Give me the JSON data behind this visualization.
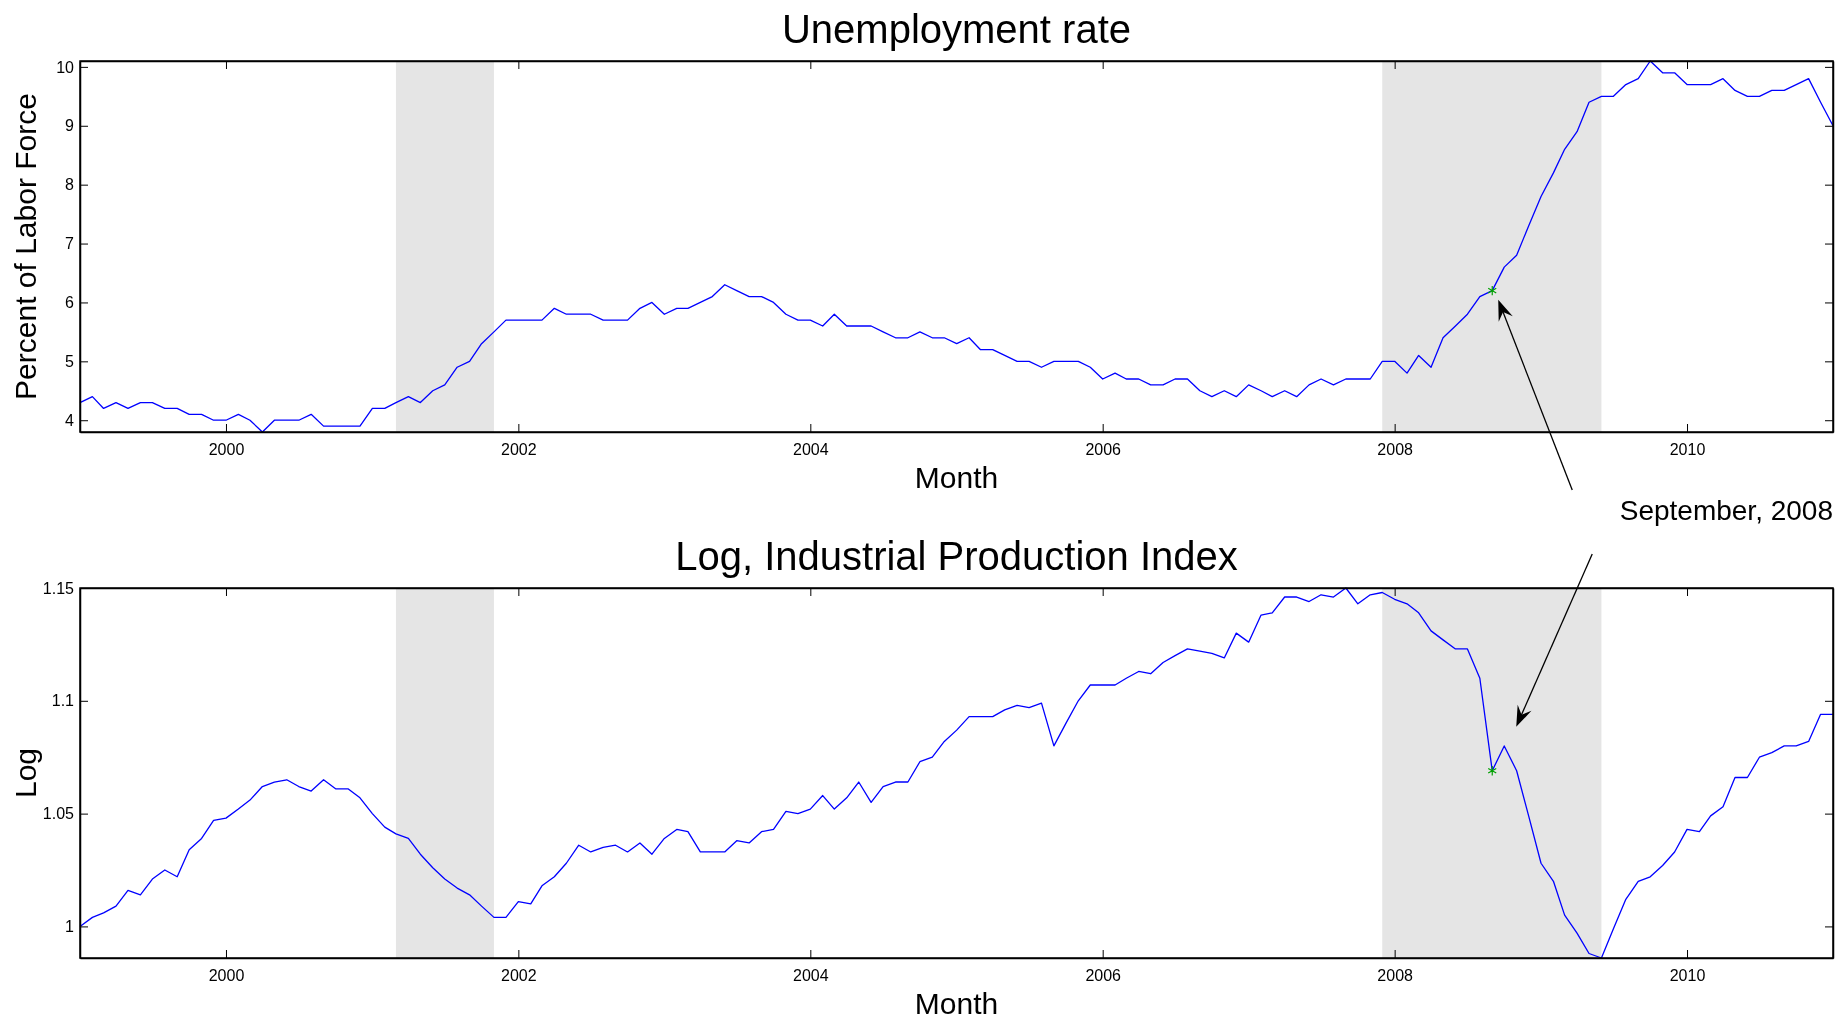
{
  "chart_data": [
    {
      "type": "line",
      "title": "Unemployment rate",
      "xlabel": "Month",
      "ylabel": "Percent of Labor Force",
      "x": [
        "1999-01",
        "1999-02",
        "1999-03",
        "1999-04",
        "1999-05",
        "1999-06",
        "1999-07",
        "1999-08",
        "1999-09",
        "1999-10",
        "1999-11",
        "1999-12",
        "2000-01",
        "2000-02",
        "2000-03",
        "2000-04",
        "2000-05",
        "2000-06",
        "2000-07",
        "2000-08",
        "2000-09",
        "2000-10",
        "2000-11",
        "2000-12",
        "2001-01",
        "2001-02",
        "2001-03",
        "2001-04",
        "2001-05",
        "2001-06",
        "2001-07",
        "2001-08",
        "2001-09",
        "2001-10",
        "2001-11",
        "2001-12",
        "2002-01",
        "2002-02",
        "2002-03",
        "2002-04",
        "2002-05",
        "2002-06",
        "2002-07",
        "2002-08",
        "2002-09",
        "2002-10",
        "2002-11",
        "2002-12",
        "2003-01",
        "2003-02",
        "2003-03",
        "2003-04",
        "2003-05",
        "2003-06",
        "2003-07",
        "2003-08",
        "2003-09",
        "2003-10",
        "2003-11",
        "2003-12",
        "2004-01",
        "2004-02",
        "2004-03",
        "2004-04",
        "2004-05",
        "2004-06",
        "2004-07",
        "2004-08",
        "2004-09",
        "2004-10",
        "2004-11",
        "2004-12",
        "2005-01",
        "2005-02",
        "2005-03",
        "2005-04",
        "2005-05",
        "2005-06",
        "2005-07",
        "2005-08",
        "2005-09",
        "2005-10",
        "2005-11",
        "2005-12",
        "2006-01",
        "2006-02",
        "2006-03",
        "2006-04",
        "2006-05",
        "2006-06",
        "2006-07",
        "2006-08",
        "2006-09",
        "2006-10",
        "2006-11",
        "2006-12",
        "2007-01",
        "2007-02",
        "2007-03",
        "2007-04",
        "2007-05",
        "2007-06",
        "2007-07",
        "2007-08",
        "2007-09",
        "2007-10",
        "2007-11",
        "2007-12",
        "2008-01",
        "2008-02",
        "2008-03",
        "2008-04",
        "2008-05",
        "2008-06",
        "2008-07",
        "2008-08",
        "2008-09",
        "2008-10",
        "2008-11",
        "2008-12",
        "2009-01",
        "2009-02",
        "2009-03",
        "2009-04",
        "2009-05",
        "2009-06",
        "2009-07",
        "2009-08",
        "2009-09",
        "2009-10",
        "2009-11",
        "2009-12",
        "2010-01",
        "2010-02",
        "2010-03",
        "2010-04",
        "2010-05",
        "2010-06",
        "2010-07",
        "2010-08",
        "2010-09",
        "2010-10",
        "2010-11",
        "2010-12",
        "2011-01"
      ],
      "series": [
        {
          "color": "#0000ff",
          "values": [
            4.3,
            4.4,
            4.2,
            4.3,
            4.2,
            4.3,
            4.3,
            4.2,
            4.2,
            4.1,
            4.1,
            4.0,
            4.0,
            4.1,
            4.0,
            3.8,
            4.0,
            4.0,
            4.0,
            4.1,
            3.9,
            3.9,
            3.9,
            3.9,
            4.2,
            4.2,
            4.3,
            4.4,
            4.3,
            4.5,
            4.6,
            4.9,
            5.0,
            5.3,
            5.5,
            5.7,
            5.7,
            5.7,
            5.7,
            5.9,
            5.8,
            5.8,
            5.8,
            5.7,
            5.7,
            5.7,
            5.9,
            6.0,
            5.8,
            5.9,
            5.9,
            6.0,
            6.1,
            6.3,
            6.2,
            6.1,
            6.1,
            6.0,
            5.8,
            5.7,
            5.7,
            5.6,
            5.8,
            5.6,
            5.6,
            5.6,
            5.5,
            5.4,
            5.4,
            5.5,
            5.4,
            5.4,
            5.3,
            5.4,
            5.2,
            5.2,
            5.1,
            5.0,
            5.0,
            4.9,
            5.0,
            5.0,
            5.0,
            4.9,
            4.7,
            4.8,
            4.7,
            4.7,
            4.6,
            4.6,
            4.7,
            4.7,
            4.5,
            4.4,
            4.5,
            4.4,
            4.6,
            4.5,
            4.4,
            4.5,
            4.4,
            4.6,
            4.7,
            4.6,
            4.7,
            4.7,
            4.7,
            5.0,
            5.0,
            4.8,
            5.1,
            4.9,
            5.4,
            5.6,
            5.8,
            6.1,
            6.2,
            6.6,
            6.8,
            7.3,
            7.8,
            8.2,
            8.6,
            8.9,
            9.4,
            9.5,
            9.5,
            9.7,
            9.8,
            10.1,
            9.9,
            9.9,
            9.7,
            9.7,
            9.7,
            9.8,
            9.6,
            9.5,
            9.5,
            9.6,
            9.6,
            9.7,
            9.8,
            9.4,
            9.0
          ]
        },
        {
          "type": "scatter",
          "color": "#00a000",
          "marker": "cross",
          "x": [
            "2008-09"
          ],
          "values": [
            6.2
          ]
        }
      ],
      "xlim": [
        "1999-01",
        "2011-01"
      ],
      "xticks": [
        "2000",
        "2002",
        "2004",
        "2006",
        "2008",
        "2010"
      ],
      "ylim": [
        3.8,
        10.1
      ],
      "yticks": [
        4,
        5,
        6,
        7,
        8,
        9,
        10
      ],
      "bands": [
        {
          "axis": "x",
          "from": "2001-03",
          "to": "2001-11",
          "color": "#e5e5e5"
        },
        {
          "axis": "x",
          "from": "2007-12",
          "to": "2009-06",
          "color": "#e5e5e5"
        }
      ],
      "annotations": [
        "September, 2008"
      ]
    },
    {
      "type": "line",
      "title": "Log, Industrial Production Index",
      "xlabel": "Month",
      "ylabel": "Log",
      "x": [
        "1999-01",
        "1999-02",
        "1999-03",
        "1999-04",
        "1999-05",
        "1999-06",
        "1999-07",
        "1999-08",
        "1999-09",
        "1999-10",
        "1999-11",
        "1999-12",
        "2000-01",
        "2000-02",
        "2000-03",
        "2000-04",
        "2000-05",
        "2000-06",
        "2000-07",
        "2000-08",
        "2000-09",
        "2000-10",
        "2000-11",
        "2000-12",
        "2001-01",
        "2001-02",
        "2001-03",
        "2001-04",
        "2001-05",
        "2001-06",
        "2001-07",
        "2001-08",
        "2001-09",
        "2001-10",
        "2001-11",
        "2001-12",
        "2002-01",
        "2002-02",
        "2002-03",
        "2002-04",
        "2002-05",
        "2002-06",
        "2002-07",
        "2002-08",
        "2002-09",
        "2002-10",
        "2002-11",
        "2002-12",
        "2003-01",
        "2003-02",
        "2003-03",
        "2003-04",
        "2003-05",
        "2003-06",
        "2003-07",
        "2003-08",
        "2003-09",
        "2003-10",
        "2003-11",
        "2003-12",
        "2004-01",
        "2004-02",
        "2004-03",
        "2004-04",
        "2004-05",
        "2004-06",
        "2004-07",
        "2004-08",
        "2004-09",
        "2004-10",
        "2004-11",
        "2004-12",
        "2005-01",
        "2005-02",
        "2005-03",
        "2005-04",
        "2005-05",
        "2005-06",
        "2005-07",
        "2005-08",
        "2005-09",
        "2005-10",
        "2005-11",
        "2005-12",
        "2006-01",
        "2006-02",
        "2006-03",
        "2006-04",
        "2006-05",
        "2006-06",
        "2006-07",
        "2006-08",
        "2006-09",
        "2006-10",
        "2006-11",
        "2006-12",
        "2007-01",
        "2007-02",
        "2007-03",
        "2007-04",
        "2007-05",
        "2007-06",
        "2007-07",
        "2007-08",
        "2007-09",
        "2007-10",
        "2007-11",
        "2007-12",
        "2008-01",
        "2008-02",
        "2008-03",
        "2008-04",
        "2008-05",
        "2008-06",
        "2008-07",
        "2008-08",
        "2008-09",
        "2008-10",
        "2008-11",
        "2008-12",
        "2009-01",
        "2009-02",
        "2009-03",
        "2009-04",
        "2009-05",
        "2009-06",
        "2009-07",
        "2009-08",
        "2009-09",
        "2009-10",
        "2009-11",
        "2009-12",
        "2010-01",
        "2010-02",
        "2010-03",
        "2010-04",
        "2010-05",
        "2010-06",
        "2010-07",
        "2010-08",
        "2010-09",
        "2010-10",
        "2010-11",
        "2010-12",
        "2011-01"
      ],
      "series": [
        {
          "color": "#0000ff",
          "values": [
            1.0,
            1.004,
            1.006,
            1.009,
            1.016,
            1.014,
            1.021,
            1.025,
            1.022,
            1.034,
            1.039,
            1.047,
            1.048,
            1.052,
            1.056,
            1.062,
            1.064,
            1.065,
            1.062,
            1.06,
            1.065,
            1.061,
            1.061,
            1.057,
            1.05,
            1.044,
            1.041,
            1.039,
            1.032,
            1.026,
            1.021,
            1.017,
            1.014,
            1.009,
            1.004,
            1.004,
            1.011,
            1.01,
            1.018,
            1.022,
            1.028,
            1.036,
            1.033,
            1.035,
            1.036,
            1.033,
            1.037,
            1.032,
            1.039,
            1.043,
            1.042,
            1.033,
            1.033,
            1.033,
            1.038,
            1.037,
            1.042,
            1.043,
            1.051,
            1.05,
            1.052,
            1.058,
            1.052,
            1.057,
            1.064,
            1.055,
            1.062,
            1.064,
            1.064,
            1.073,
            1.075,
            1.082,
            1.087,
            1.093,
            1.093,
            1.093,
            1.096,
            1.098,
            1.097,
            1.099,
            1.08,
            1.09,
            1.1,
            1.107,
            1.107,
            1.107,
            1.11,
            1.113,
            1.112,
            1.117,
            1.12,
            1.123,
            1.122,
            1.121,
            1.119,
            1.13,
            1.126,
            1.138,
            1.139,
            1.146,
            1.146,
            1.144,
            1.147,
            1.146,
            1.15,
            1.143,
            1.147,
            1.148,
            1.145,
            1.143,
            1.139,
            1.131,
            1.127,
            1.123,
            1.123,
            1.11,
            1.069,
            1.08,
            1.069,
            1.049,
            1.028,
            1.02,
            1.005,
            0.997,
            0.988,
            0.986,
            0.999,
            1.012,
            1.02,
            1.022,
            1.027,
            1.033,
            1.043,
            1.042,
            1.049,
            1.053,
            1.066,
            1.066,
            1.075,
            1.077,
            1.08,
            1.08,
            1.082,
            1.094,
            1.094
          ]
        },
        {
          "type": "scatter",
          "color": "#00a000",
          "marker": "cross",
          "x": [
            "2008-09"
          ],
          "values": [
            1.069
          ]
        }
      ],
      "xlim": [
        "1999-01",
        "2011-01"
      ],
      "xticks": [
        "2000",
        "2002",
        "2004",
        "2006",
        "2008",
        "2010"
      ],
      "ylim": [
        0.986,
        1.15
      ],
      "yticks": [
        1,
        1.05,
        1.1,
        1.15
      ],
      "bands": [
        {
          "axis": "x",
          "from": "2001-03",
          "to": "2001-11",
          "color": "#e5e5e5"
        },
        {
          "axis": "x",
          "from": "2007-12",
          "to": "2009-06",
          "color": "#e5e5e5"
        }
      ]
    }
  ]
}
